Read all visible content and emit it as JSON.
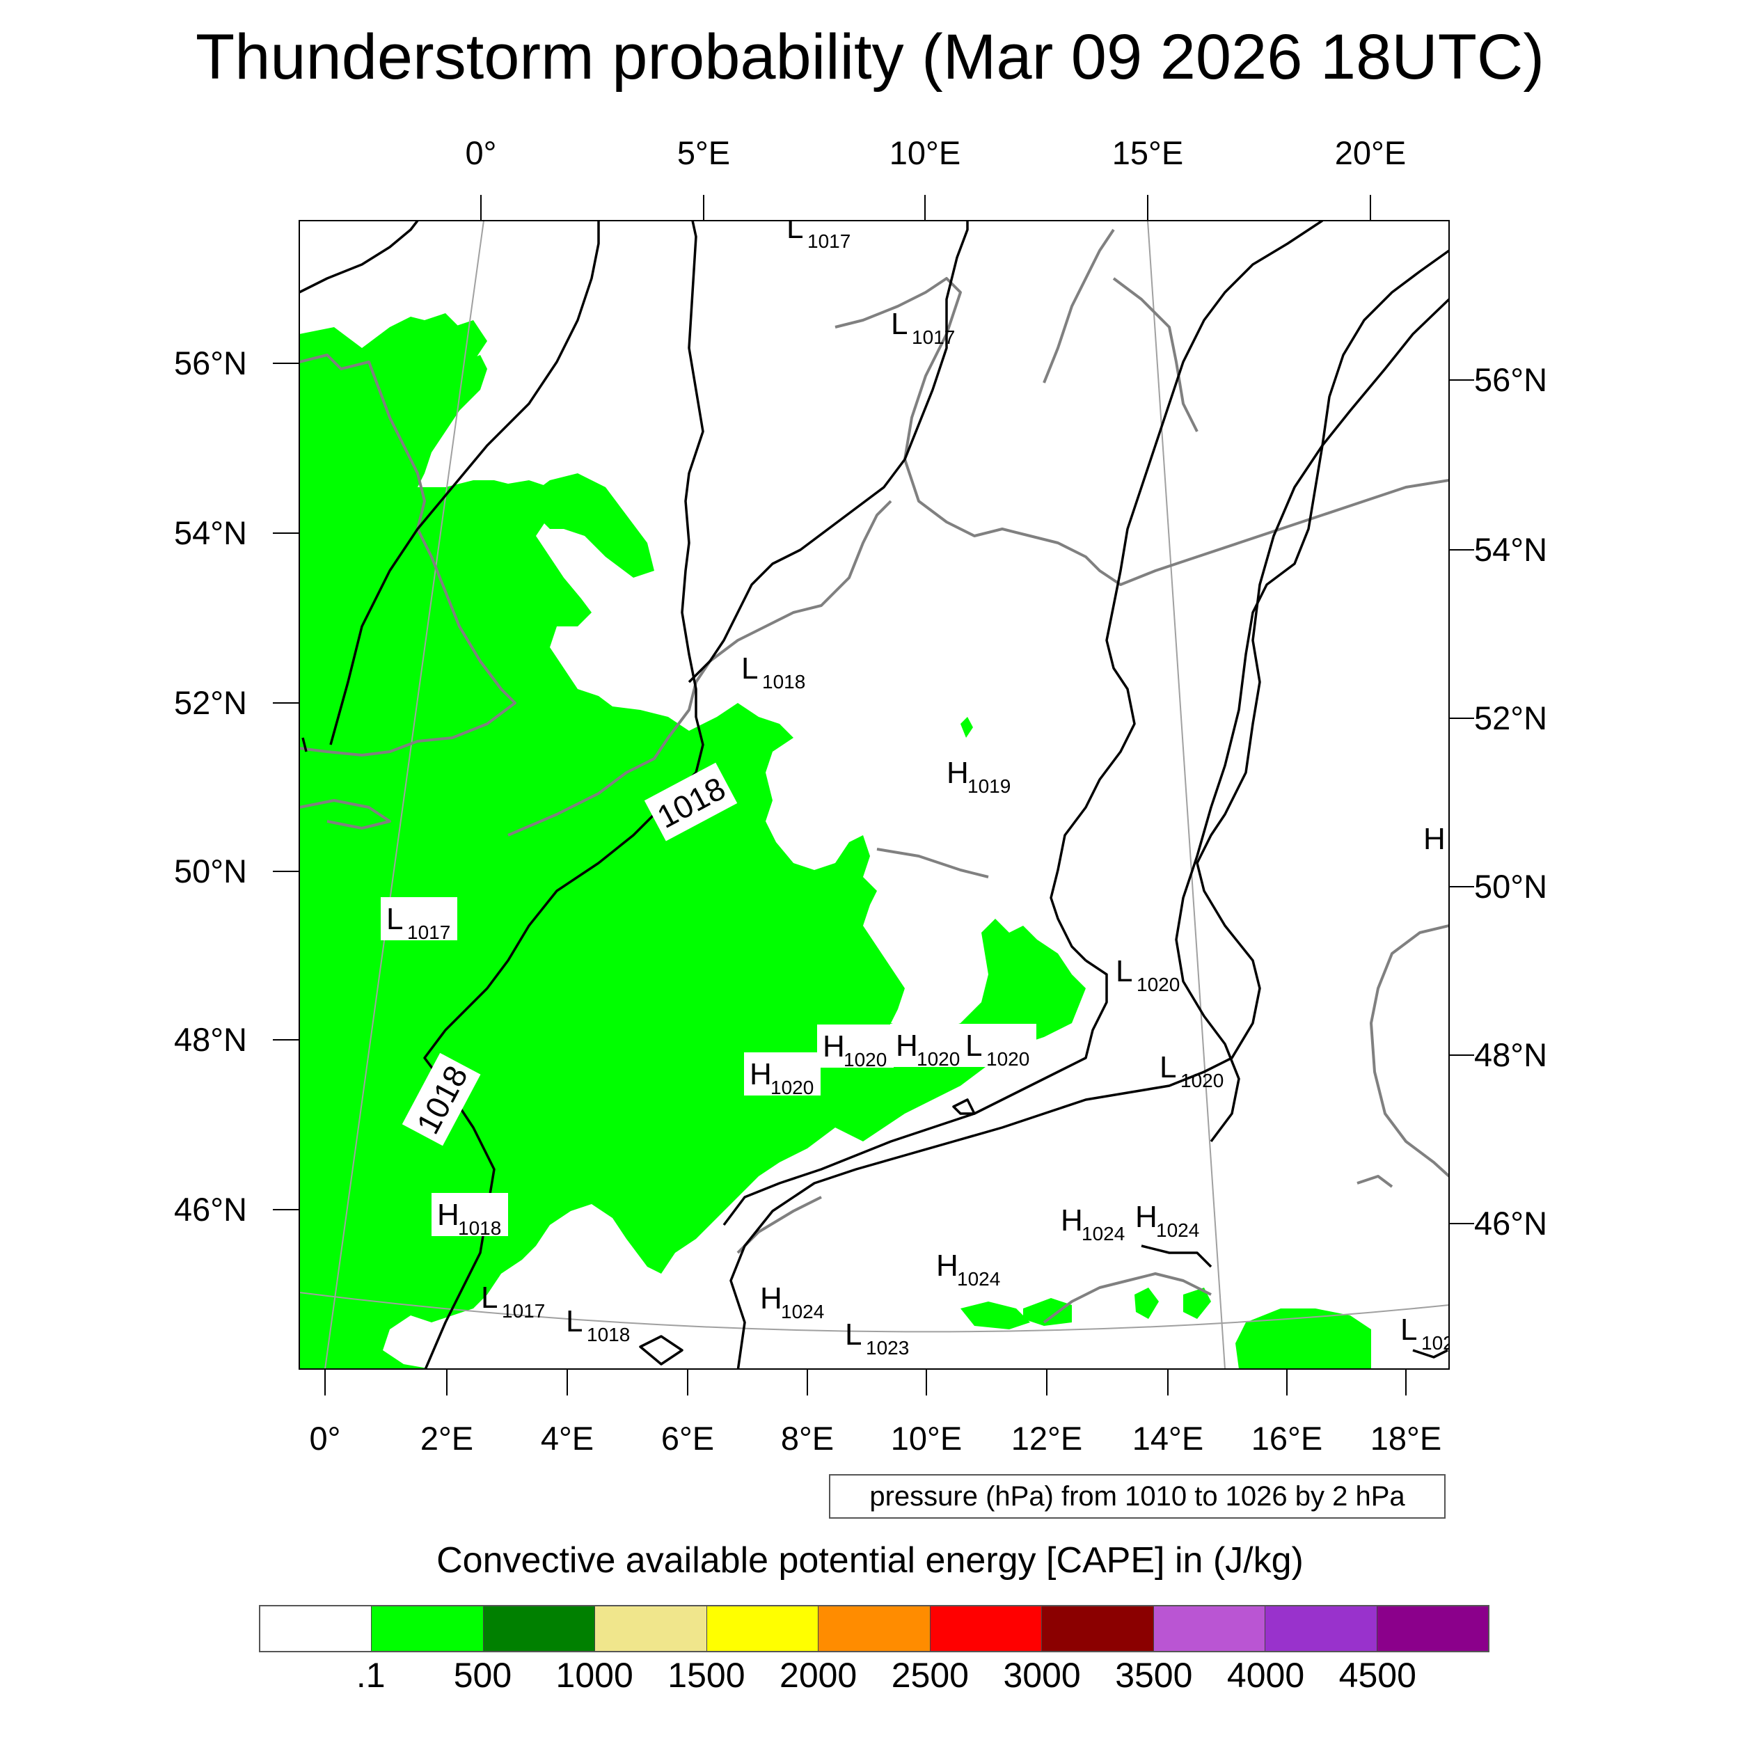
{
  "title": "Thunderstorm probability (Mar 09 2026 18UTC)",
  "map": {
    "top_lon_labels": [
      "0°",
      "5°E",
      "10°E",
      "15°E",
      "20°E"
    ],
    "bottom_lon_labels": [
      "0°",
      "2°E",
      "4°E",
      "6°E",
      "8°E",
      "10°E",
      "12°E",
      "14°E",
      "16°E",
      "18°E"
    ],
    "left_lat_labels": [
      "56°N",
      "54°N",
      "52°N",
      "50°N",
      "48°N",
      "46°N"
    ],
    "right_lat_labels": [
      "56°N",
      "54°N",
      "52°N",
      "50°N",
      "48°N",
      "46°N"
    ],
    "isobar_labels": [
      "1018",
      "1018"
    ],
    "pressure_centers": [
      {
        "letter": "L",
        "value": "1017"
      },
      {
        "letter": "L",
        "value": "1017"
      },
      {
        "letter": "L",
        "value": "1018"
      },
      {
        "letter": "H",
        "value": "1019"
      },
      {
        "letter": "L",
        "value": "1017"
      },
      {
        "letter": "L",
        "value": "1020"
      },
      {
        "letter": "H",
        "value": "1020"
      },
      {
        "letter": "H",
        "value": "1020"
      },
      {
        "letter": "L",
        "value": "1020"
      },
      {
        "letter": "H",
        "value": "1020"
      },
      {
        "letter": "L",
        "value": "1020"
      },
      {
        "letter": "H",
        "value": "1018"
      },
      {
        "letter": "H",
        "value": "1024"
      },
      {
        "letter": "H",
        "value": "1024"
      },
      {
        "letter": "H",
        "value": "1024"
      },
      {
        "letter": "H",
        "value": "1024"
      },
      {
        "letter": "L",
        "value": "1017"
      },
      {
        "letter": "L",
        "value": "1018"
      },
      {
        "letter": "L",
        "value": "1023"
      },
      {
        "letter": "L",
        "value": "102"
      },
      {
        "letter": "H",
        "value": ""
      }
    ],
    "colors": {
      "cape_fill": "#00ff00",
      "coastline": "#808080",
      "isobar": "#000000",
      "graticule": "#a0a0a0"
    }
  },
  "contour_info": "pressure (hPa) from 1010 to 1026 by 2 hPa",
  "colorbar": {
    "title": "Convective available potential energy [CAPE] in (J/kg)",
    "colors": [
      "#ffffff",
      "#00ff00",
      "#008000",
      "#f0e68c",
      "#ffff00",
      "#ff8c00",
      "#ff0000",
      "#8b0000",
      "#ba55d3",
      "#9932cc",
      "#8b008b"
    ],
    "labels": [
      ".1",
      "500",
      "1000",
      "1500",
      "2000",
      "2500",
      "3000",
      "3500",
      "4000",
      "4500"
    ]
  }
}
